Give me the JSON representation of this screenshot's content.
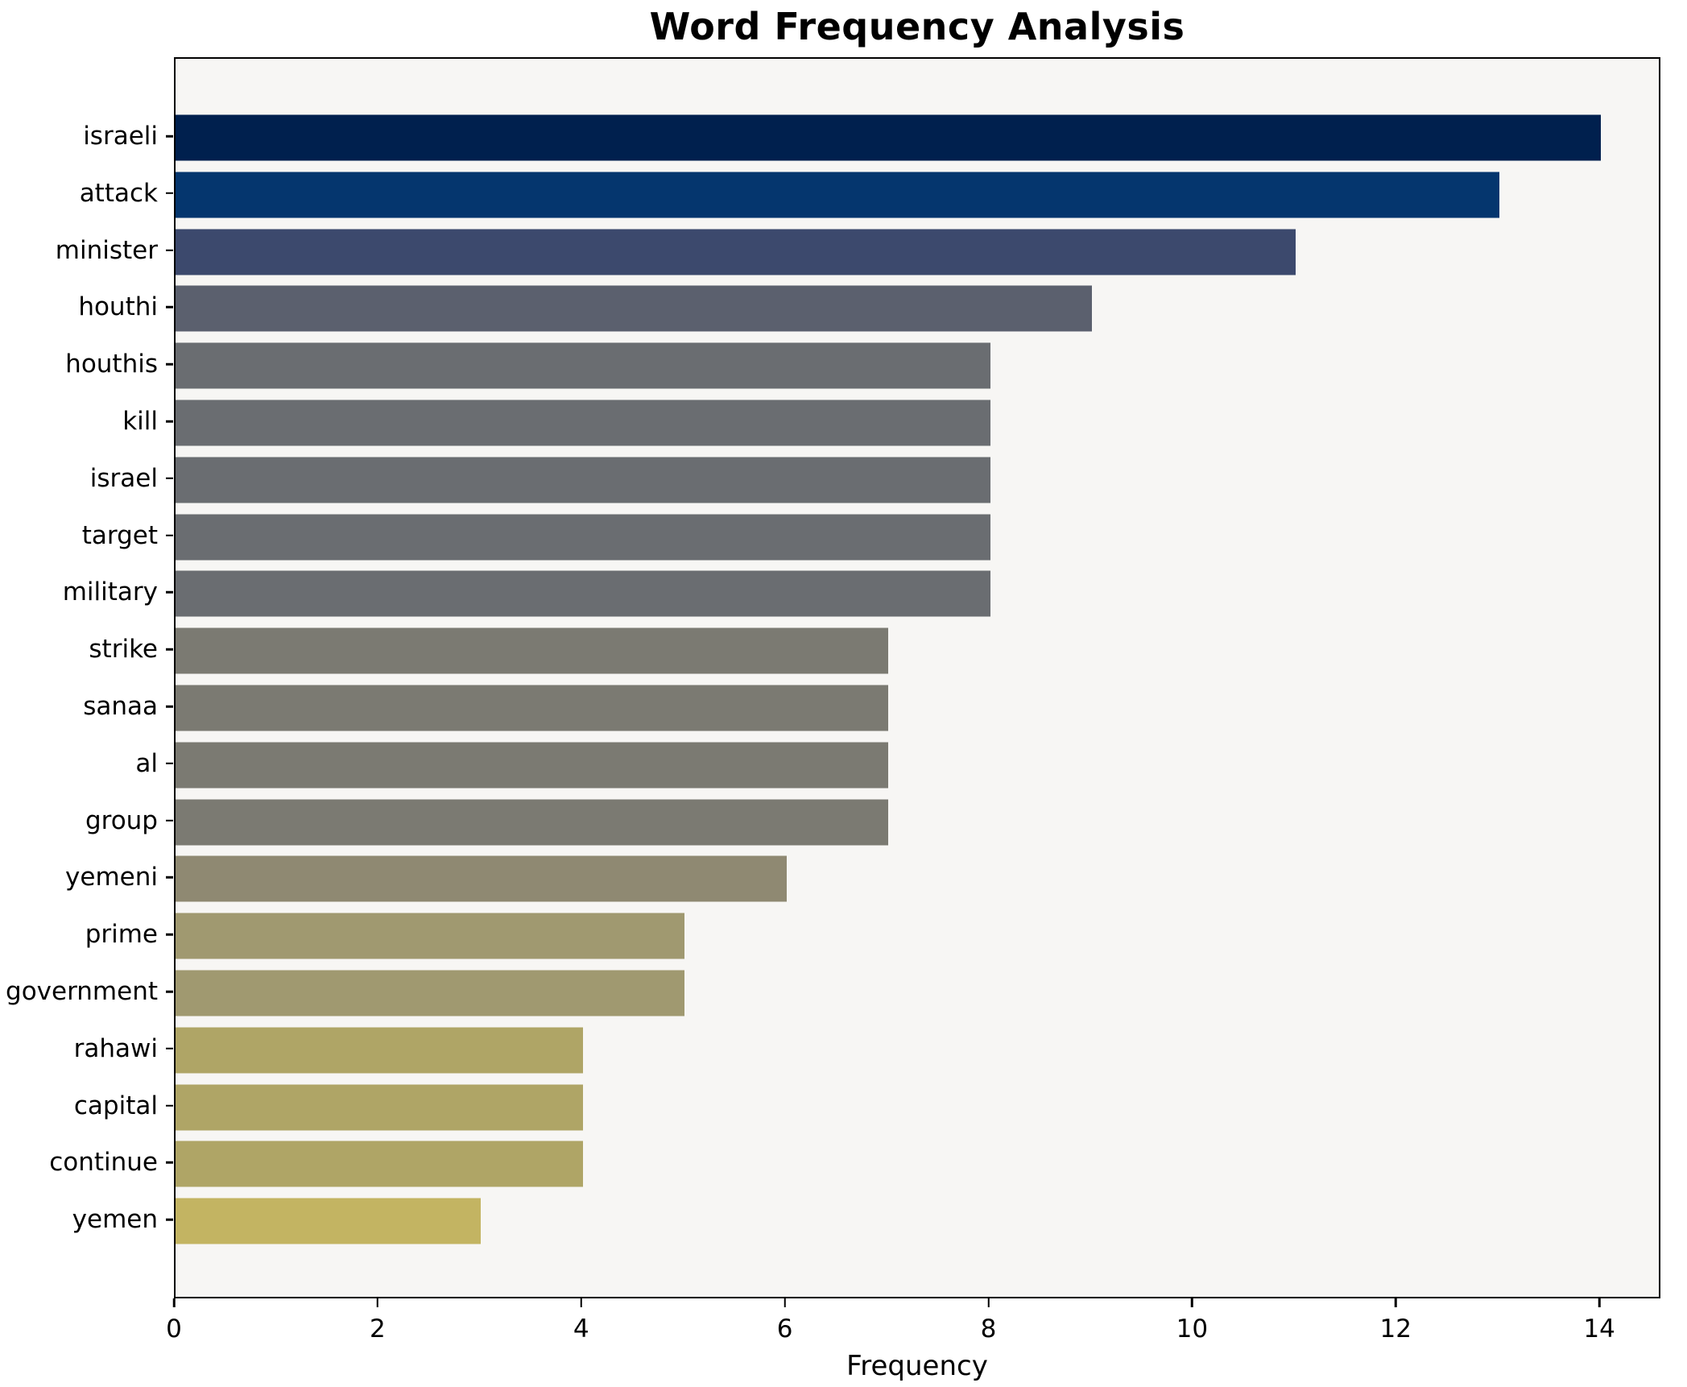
{
  "chart_data": {
    "type": "bar",
    "orientation": "horizontal",
    "title": "Word Frequency Analysis",
    "xlabel": "Frequency",
    "ylabel": "",
    "categories": [
      "israeli",
      "attack",
      "minister",
      "houthi",
      "houthis",
      "kill",
      "israel",
      "target",
      "military",
      "strike",
      "sanaa",
      "al",
      "group",
      "yemeni",
      "prime",
      "government",
      "rahawi",
      "capital",
      "continue",
      "yemen"
    ],
    "values": [
      14,
      13,
      11,
      9,
      8,
      8,
      8,
      8,
      8,
      7,
      7,
      7,
      7,
      6,
      5,
      5,
      4,
      4,
      4,
      3
    ],
    "bar_colors": [
      "#00204e",
      "#05366e",
      "#3c496d",
      "#5b606e",
      "#6a6d71",
      "#6a6d71",
      "#6a6d71",
      "#6a6d71",
      "#6a6d71",
      "#7b7a72",
      "#7b7a72",
      "#7b7a72",
      "#7b7a72",
      "#8f8972",
      "#a09970",
      "#a09970",
      "#afa566",
      "#afa566",
      "#afa566",
      "#c3b462"
    ],
    "xlim": [
      0,
      14.6
    ],
    "xticks": [
      0,
      2,
      4,
      6,
      8,
      10,
      12,
      14
    ],
    "grid": false,
    "legend": "none",
    "plot_bg": "#f7f6f4",
    "figure_bg": "#ffffff",
    "axis_color": "#000000",
    "text_color": "#000000"
  }
}
